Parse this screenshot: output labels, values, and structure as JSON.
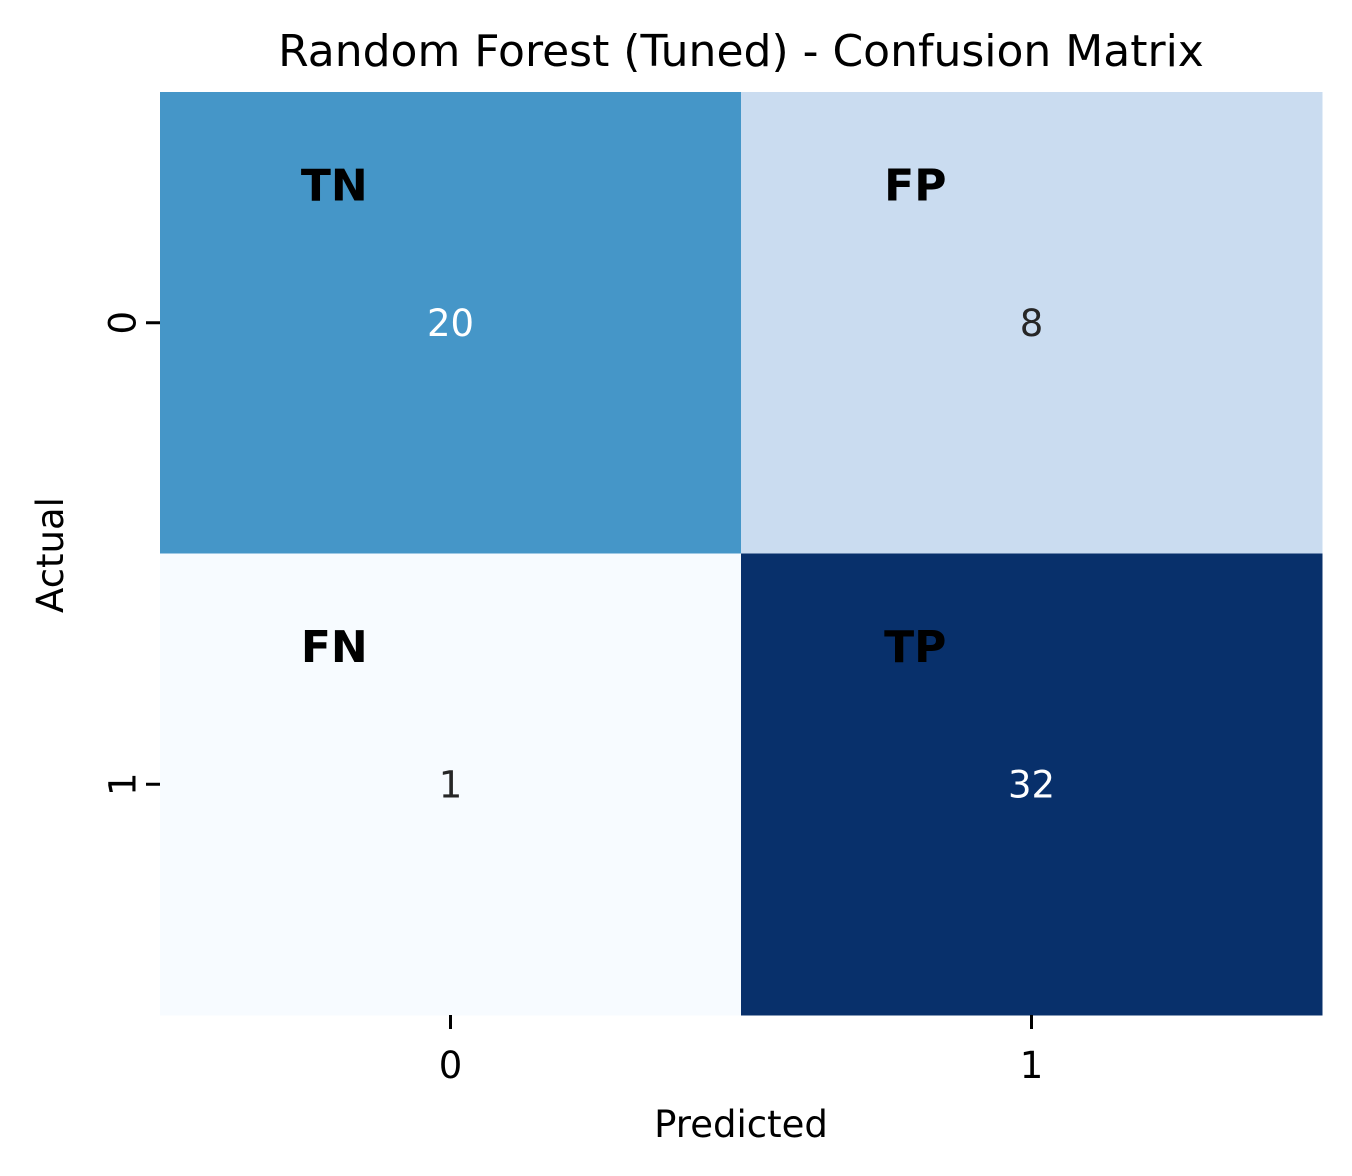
{
  "chart_data": {
    "type": "heatmap",
    "title": "Random Forest (Tuned) - Confusion Matrix",
    "xlabel": "Predicted",
    "ylabel": "Actual",
    "x_categories": [
      "0",
      "1"
    ],
    "y_categories": [
      "0",
      "1"
    ],
    "values": [
      [
        20,
        8
      ],
      [
        1,
        32
      ]
    ],
    "cell_tags": [
      [
        "TN",
        "FP"
      ],
      [
        "FN",
        "TP"
      ]
    ],
    "colormap": "Blues",
    "vmin": 1,
    "vmax": 32,
    "colorbar": false,
    "cell_colors": [
      [
        "#4596c8",
        "#cadcf0"
      ],
      [
        "#f7fbff",
        "#08306b"
      ]
    ],
    "value_text_colors": [
      [
        "#ffffff",
        "#262626"
      ],
      [
        "#262626",
        "#ffffff"
      ]
    ]
  }
}
